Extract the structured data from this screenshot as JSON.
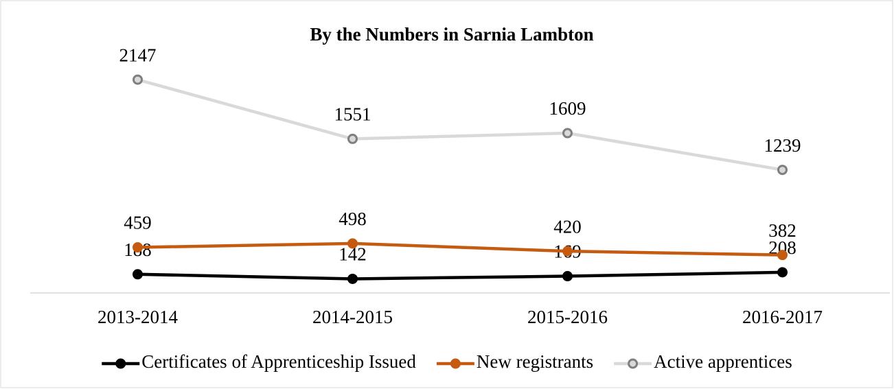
{
  "chart_data": {
    "type": "line",
    "title": "By the Numbers in Sarnia Lambton",
    "categories": [
      "2013-2014",
      "2014-2015",
      "2015-2016",
      "2016-2017"
    ],
    "series": [
      {
        "name": "Certificates of Apprenticeship Issued",
        "color": "#000000",
        "values": [
          188,
          142,
          169,
          208
        ]
      },
      {
        "name": "New registrants",
        "color": "#c55a11",
        "values": [
          459,
          498,
          420,
          382
        ]
      },
      {
        "name": "Active apprentices",
        "color": "#d9d9d9",
        "values": [
          2147,
          1551,
          1609,
          1239
        ]
      }
    ],
    "ylim": [
      0,
      2500
    ],
    "legend": "bottom"
  }
}
